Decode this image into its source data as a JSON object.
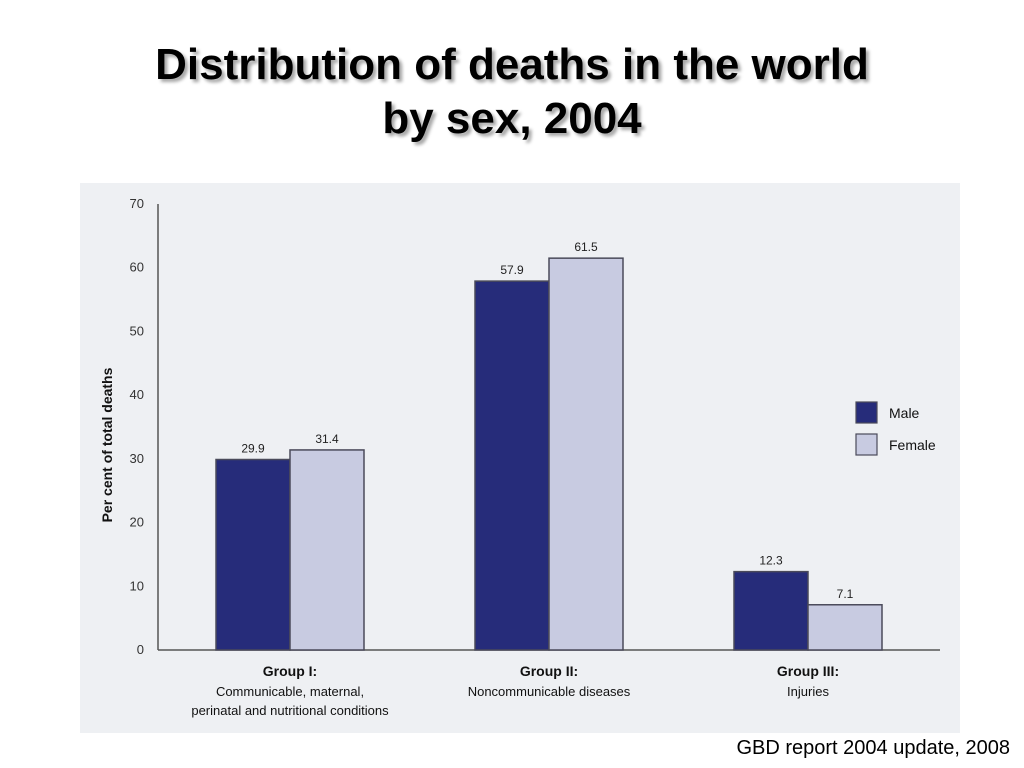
{
  "slide": {
    "title_line1": "Distribution of deaths in the world",
    "title_line2": "by sex, 2004",
    "source": "GBD report 2004 update, 2008"
  },
  "chart_data": {
    "type": "bar",
    "ylabel": "Per cent of total deaths",
    "ylim": [
      0,
      70
    ],
    "yticks": [
      0,
      10,
      20,
      30,
      40,
      50,
      60,
      70
    ],
    "categories": [
      {
        "title": "Group I:",
        "subtitle": [
          "Communicable, maternal,",
          "perinatal and nutritional conditions"
        ]
      },
      {
        "title": "Group II:",
        "subtitle": [
          "Noncommunicable diseases"
        ]
      },
      {
        "title": "Group III:",
        "subtitle": [
          "Injuries"
        ]
      }
    ],
    "series": [
      {
        "name": "Male",
        "color": "#262c7a",
        "values": [
          29.9,
          57.9,
          12.3
        ],
        "labels": [
          "29.9",
          "57.9",
          "12.3"
        ]
      },
      {
        "name": "Female",
        "color": "#c8cbe1",
        "values": [
          31.4,
          61.5,
          7.1
        ],
        "labels": [
          "31.4",
          "61.5",
          "7.1"
        ]
      }
    ],
    "legend_position": "right",
    "grid": false
  }
}
